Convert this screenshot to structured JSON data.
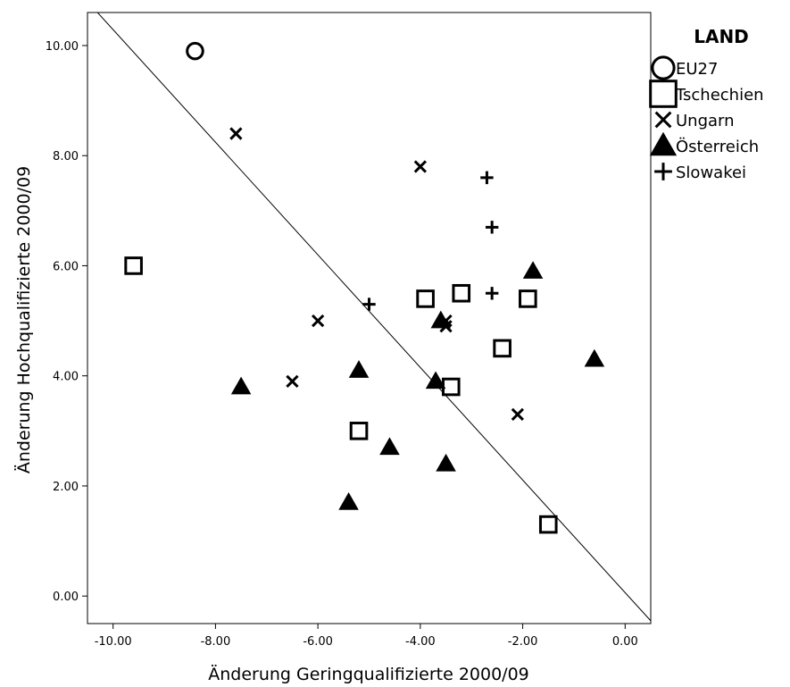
{
  "chart_data": {
    "type": "scatter",
    "xlabel": "Änderung Geringqualifizierte 2000/09",
    "ylabel": "Änderung Hochqualifizierte 2000/09",
    "xlim": [
      -10.5,
      0.5
    ],
    "ylim": [
      -0.5,
      10.6
    ],
    "xticks": [
      -10,
      -8,
      -6,
      -4,
      -2,
      0
    ],
    "yticks": [
      0,
      2,
      4,
      6,
      8,
      10
    ],
    "xtick_labels": [
      "-10.00",
      "-8.00",
      "-6.00",
      "-4.00",
      "-2.00",
      "0.00"
    ],
    "ytick_labels": [
      "0.00",
      "2.00",
      "4.00",
      "6.00",
      "8.00",
      "10.00"
    ],
    "grid": false,
    "legend_title": "LAND",
    "legend_position": "right",
    "reference_line": {
      "from": [
        -10.5,
        10.8
      ],
      "to": [
        0.5,
        -0.45
      ]
    },
    "series": [
      {
        "name": "EU27",
        "marker": "circle",
        "points": [
          [
            -8.4,
            9.9
          ]
        ]
      },
      {
        "name": "Tschechien",
        "marker": "square",
        "points": [
          [
            -9.6,
            6.0
          ],
          [
            -3.9,
            5.4
          ],
          [
            -3.2,
            5.5
          ],
          [
            -1.9,
            5.4
          ],
          [
            -2.4,
            4.5
          ],
          [
            -3.4,
            3.8
          ],
          [
            -5.2,
            3.0
          ],
          [
            -1.5,
            1.3
          ]
        ]
      },
      {
        "name": "Ungarn",
        "marker": "x",
        "points": [
          [
            -7.6,
            8.4
          ],
          [
            -4.0,
            7.8
          ],
          [
            -6.0,
            5.0
          ],
          [
            -3.5,
            5.0
          ],
          [
            -3.5,
            4.9
          ],
          [
            -6.5,
            3.9
          ],
          [
            -2.1,
            3.3
          ]
        ]
      },
      {
        "name": "Österreich",
        "marker": "triangle",
        "points": [
          [
            -1.8,
            5.9
          ],
          [
            -3.6,
            5.0
          ],
          [
            -0.6,
            4.3
          ],
          [
            -5.2,
            4.1
          ],
          [
            -3.7,
            3.9
          ],
          [
            -7.5,
            3.8
          ],
          [
            -4.6,
            2.7
          ],
          [
            -3.5,
            2.4
          ],
          [
            -5.4,
            1.7
          ]
        ]
      },
      {
        "name": "Slowakei",
        "marker": "plus",
        "points": [
          [
            -2.7,
            7.6
          ],
          [
            -2.6,
            6.7
          ],
          [
            -2.6,
            5.5
          ],
          [
            -5.0,
            5.3
          ]
        ]
      }
    ]
  }
}
